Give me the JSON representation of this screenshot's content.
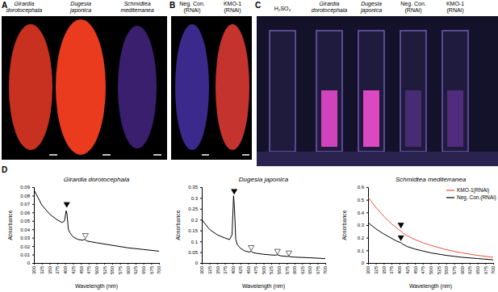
{
  "figure": {
    "panel_labels": [
      "A",
      "B",
      "C",
      "D"
    ],
    "photo_a_labels": [
      [
        "Girardia",
        "dorotocephala"
      ],
      [
        "Dugesia",
        "japonica"
      ],
      [
        "Schmidtea",
        "mediterranea"
      ]
    ],
    "photo_b_labels": [
      [
        "Neg. Con.",
        "(RNAi)"
      ],
      [
        "KMO-1",
        "(RNAi)"
      ]
    ],
    "photo_c_labels": [
      [
        "H₂SO₄"
      ],
      [
        "Girardia",
        "dorotocephala"
      ],
      [
        "Dugesia",
        "japonica"
      ],
      [
        "Neg. Con.",
        "(RNAi)"
      ],
      [
        "KMO-1",
        "(RNAi)"
      ]
    ]
  },
  "chart_data": [
    {
      "type": "line",
      "title": "Girardia dorotocephala",
      "x_label": "Wavelength (nm)",
      "y_label": "Absorbance",
      "x": [
        300,
        325,
        350,
        375,
        390,
        398,
        403,
        406,
        410,
        415,
        425,
        440,
        455,
        463,
        470,
        485,
        500,
        550,
        600,
        650,
        700
      ],
      "series": [
        {
          "color": "#000000",
          "values": [
            0.087,
            0.069,
            0.058,
            0.051,
            0.048,
            0.05,
            0.062,
            0.058,
            0.04,
            0.036,
            0.031,
            0.028,
            0.027,
            0.028,
            0.026,
            0.025,
            0.024,
            0.021,
            0.018,
            0.016,
            0.014
          ]
        }
      ],
      "markers": [
        {
          "x": 405,
          "y": 0.068,
          "marker": "filled"
        },
        {
          "x": 465,
          "y": 0.031,
          "marker": "open"
        }
      ],
      "xlim": [
        300,
        700
      ],
      "xticks": [
        300,
        325,
        350,
        375,
        400,
        425,
        450,
        475,
        500,
        525,
        550,
        575,
        600,
        625,
        650,
        675,
        700
      ],
      "ylim": [
        0,
        0.09
      ],
      "yticks": [
        0,
        0.01,
        0.02,
        0.03,
        0.04,
        0.05,
        0.06,
        0.07,
        0.08,
        0.09
      ],
      "grid": false
    },
    {
      "type": "line",
      "title": "Dugesia japonica",
      "x_label": "Wavelength (nm)",
      "y_label": "Absorbance",
      "x": [
        300,
        325,
        350,
        375,
        390,
        398,
        403,
        406,
        410,
        415,
        425,
        440,
        455,
        460,
        465,
        480,
        500,
        525,
        540,
        545,
        555,
        575,
        580,
        590,
        600,
        650,
        700
      ],
      "series": [
        {
          "color": "#000000",
          "values": [
            0.2,
            0.155,
            0.13,
            0.115,
            0.108,
            0.13,
            0.31,
            0.25,
            0.11,
            0.085,
            0.068,
            0.055,
            0.05,
            0.055,
            0.048,
            0.044,
            0.04,
            0.037,
            0.036,
            0.038,
            0.033,
            0.03,
            0.031,
            0.028,
            0.027,
            0.024,
            0.02
          ]
        }
      ],
      "markers": [
        {
          "x": 405,
          "y": 0.325,
          "marker": "filled"
        },
        {
          "x": 460,
          "y": 0.065,
          "marker": "open"
        },
        {
          "x": 545,
          "y": 0.048,
          "marker": "open"
        },
        {
          "x": 582,
          "y": 0.04,
          "marker": "open"
        }
      ],
      "xlim": [
        300,
        700
      ],
      "xticks": [
        300,
        325,
        350,
        375,
        400,
        425,
        450,
        475,
        500,
        525,
        550,
        575,
        600,
        625,
        650,
        675,
        700
      ],
      "ylim": [
        0,
        0.35
      ],
      "yticks": [
        0,
        0.05,
        0.1,
        0.15,
        0.2,
        0.25,
        0.3,
        0.35
      ],
      "grid": false
    },
    {
      "type": "line",
      "title": "Schmidtea mediterranea",
      "x_label": "Wavelength (nm)",
      "y_label": "Absorbance",
      "x": [
        300,
        325,
        350,
        375,
        390,
        400,
        405,
        410,
        425,
        450,
        475,
        500,
        550,
        600,
        650,
        700
      ],
      "series": [
        {
          "name": "KMO-1(RNAi)",
          "color": "#e8523a",
          "values": [
            0.52,
            0.44,
            0.37,
            0.31,
            0.28,
            0.26,
            0.255,
            0.24,
            0.215,
            0.185,
            0.16,
            0.14,
            0.105,
            0.08,
            0.06,
            0.045
          ]
        },
        {
          "name": "Neg. Con.(RNAi)",
          "color": "#000000",
          "values": [
            0.32,
            0.27,
            0.23,
            0.195,
            0.175,
            0.165,
            0.16,
            0.15,
            0.13,
            0.11,
            0.095,
            0.08,
            0.06,
            0.045,
            0.035,
            0.025
          ]
        }
      ],
      "markers": [
        {
          "x": 405,
          "y": 0.29,
          "marker": "filled"
        },
        {
          "x": 405,
          "y": 0.19,
          "marker": "filled"
        }
      ],
      "legend": "upper right",
      "xlim": [
        300,
        700
      ],
      "xticks": [
        300,
        325,
        350,
        375,
        400,
        425,
        450,
        475,
        500,
        525,
        550,
        575,
        600,
        625,
        650,
        675,
        700
      ],
      "ylim": [
        0,
        0.6
      ],
      "yticks": [
        0,
        0.1,
        0.2,
        0.3,
        0.4,
        0.5,
        0.6
      ],
      "grid": false
    }
  ]
}
